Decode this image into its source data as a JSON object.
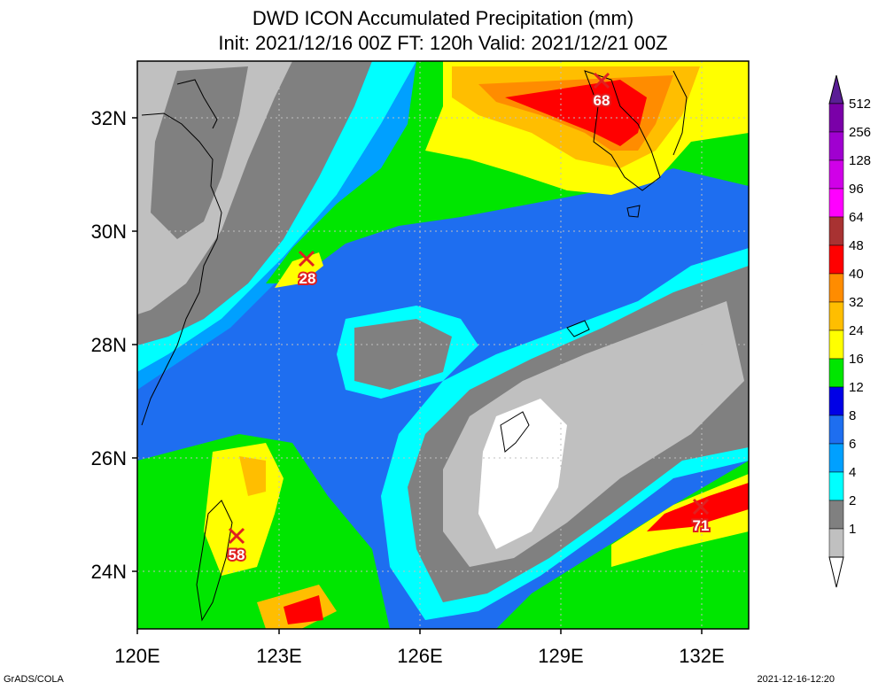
{
  "title": {
    "line1": "DWD ICON Accumulated Precipitation (mm)",
    "line2": "Init: 2021/12/16 00Z  FT: 120h  Valid: 2021/12/21 00Z"
  },
  "axes": {
    "x_ticks": [
      "120E",
      "123E",
      "126E",
      "129E",
      "132E"
    ],
    "y_ticks": [
      "32N",
      "30N",
      "28N",
      "26N",
      "24N"
    ]
  },
  "colorbar": {
    "levels": [
      "512",
      "256",
      "128",
      "96",
      "64",
      "48",
      "40",
      "32",
      "24",
      "16",
      "12",
      "8",
      "6",
      "4",
      "2",
      "1"
    ],
    "colors": [
      "#7a00a8",
      "#a000d0",
      "#d000e8",
      "#ff00ff",
      "#a83232",
      "#ff0000",
      "#ff8c00",
      "#ffbe00",
      "#ffff00",
      "#00e600",
      "#0000e6",
      "#1e6ef0",
      "#00a0ff",
      "#00ffff",
      "#808080",
      "#c0c0c0"
    ],
    "top_arrow_color": "#5a1e96"
  },
  "markers": [
    {
      "label": "28",
      "lon": 123.55,
      "lat": 29.5
    },
    {
      "label": "68",
      "lon": 130.0,
      "lat": 32.65
    },
    {
      "label": "58",
      "lon": 122.2,
      "lat": 24.6
    },
    {
      "label": "71",
      "lon": 132.0,
      "lat": 25.15
    }
  ],
  "footer": {
    "left": "GrADS/COLA",
    "right": "2021-12-16-12:20"
  }
}
